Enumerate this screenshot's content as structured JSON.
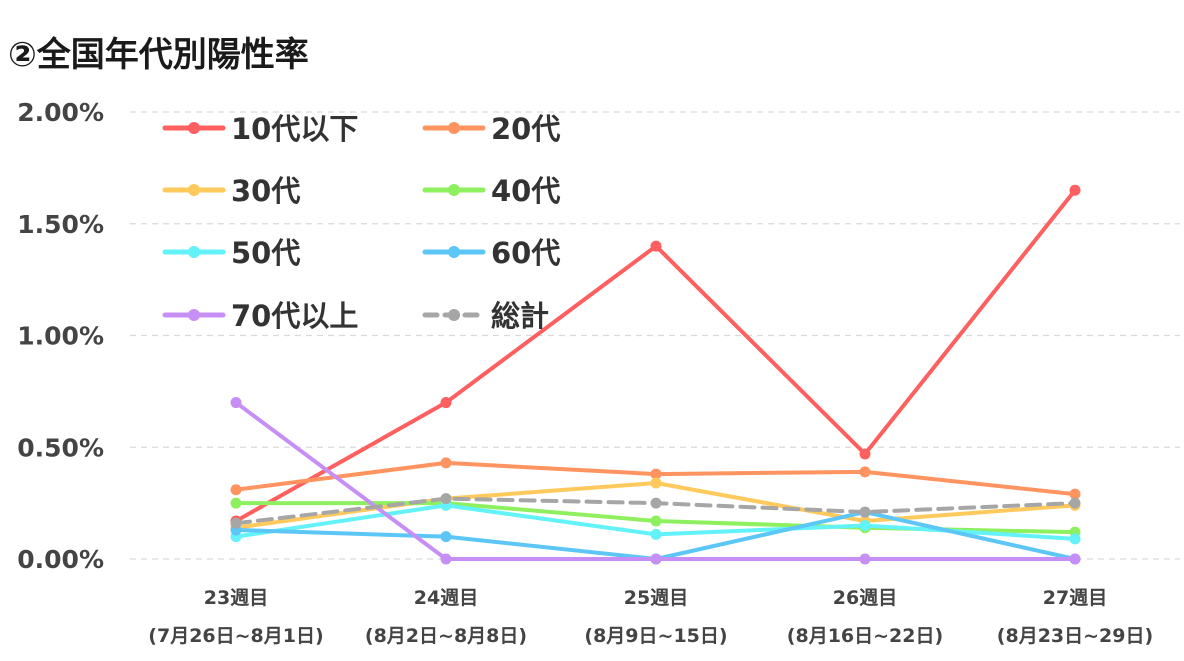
{
  "chart_data": {
    "type": "line",
    "title": "②全国年代別陽性率",
    "xlabel": "",
    "ylabel": "",
    "categories": [
      [
        "23週目",
        "(7月26日~8月1日)"
      ],
      [
        "24週目",
        "(8月2日~8月8日)"
      ],
      [
        "25週目",
        "(8月9日~15日)"
      ],
      [
        "26週目",
        "(8月16日~22日)"
      ],
      [
        "27週目",
        "(8月23日~29日)"
      ]
    ],
    "ylim": [
      0,
      2.0
    ],
    "yticks": [
      "0.00%",
      "0.50%",
      "1.00%",
      "1.50%",
      "2.00%"
    ],
    "ytick_values": [
      0,
      0.5,
      1.0,
      1.5,
      2.0
    ],
    "grid": "horizontal dashed",
    "legend_position": "top-left",
    "series": [
      {
        "name": "10代以下",
        "color": "#ff5f5f",
        "dashed": false,
        "values": [
          0.17,
          0.7,
          1.4,
          0.47,
          1.65
        ]
      },
      {
        "name": "20代",
        "color": "#ff9460",
        "dashed": false,
        "values": [
          0.31,
          0.43,
          0.38,
          0.39,
          0.29
        ]
      },
      {
        "name": "30代",
        "color": "#ffc95c",
        "dashed": false,
        "values": [
          0.14,
          0.27,
          0.34,
          0.17,
          0.24
        ]
      },
      {
        "name": "40代",
        "color": "#8ef05e",
        "dashed": false,
        "values": [
          0.25,
          0.25,
          0.17,
          0.14,
          0.12
        ]
      },
      {
        "name": "50代",
        "color": "#62f2f8",
        "dashed": false,
        "values": [
          0.1,
          0.24,
          0.11,
          0.15,
          0.09
        ]
      },
      {
        "name": "60代",
        "color": "#5cc6f7",
        "dashed": false,
        "values": [
          0.13,
          0.1,
          0.0,
          0.21,
          0.0
        ]
      },
      {
        "name": "70代以上",
        "color": "#c78ff5",
        "dashed": false,
        "values": [
          0.7,
          0.0,
          0.0,
          0.0,
          0.0
        ]
      },
      {
        "name": "総計",
        "color": "#a6a6a6",
        "dashed": true,
        "values": [
          0.16,
          0.27,
          0.25,
          0.21,
          0.25
        ]
      }
    ]
  }
}
